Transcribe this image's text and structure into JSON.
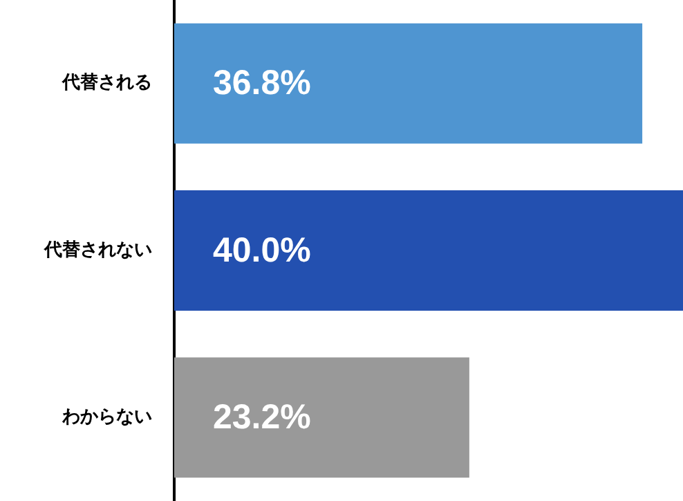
{
  "chart_data": {
    "type": "bar",
    "orientation": "horizontal",
    "categories": [
      "代替される",
      "代替されない",
      "わからない"
    ],
    "values": [
      36.8,
      40.0,
      23.2
    ],
    "colors": [
      "#4f95d1",
      "#2350b0",
      "#999999"
    ],
    "value_labels": [
      "36.8%",
      "40.0%",
      "23.2%"
    ],
    "legend": false
  }
}
